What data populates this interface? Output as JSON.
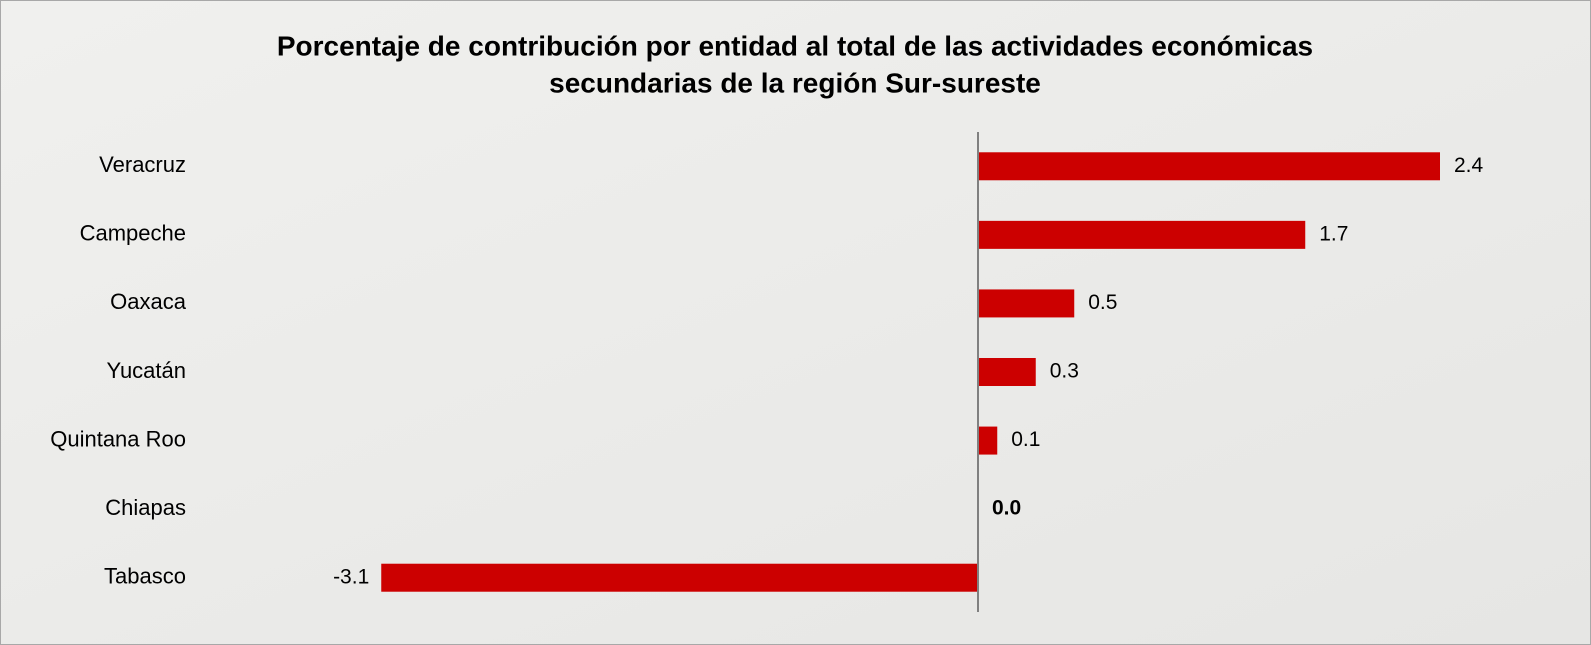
{
  "chart_data": {
    "type": "barh",
    "title": "Porcentaje de contribución por entidad al total de las actividades económicas",
    "subtitle": "secundarias de la región Sur-sureste",
    "categories": [
      "Veracruz",
      "Campeche",
      "Oaxaca",
      "Yucatán",
      "Quintana Roo",
      "Chiapas",
      "Tabasco"
    ],
    "values": [
      2.4,
      1.7,
      0.5,
      0.3,
      0.1,
      0,
      -3.1
    ],
    "value_labels": [
      "2.4",
      "1.7",
      "0.5",
      "0.3",
      "0.1",
      "0.0",
      "-3.1"
    ],
    "color": "#cc0000",
    "xlim": [
      -4,
      3
    ]
  }
}
